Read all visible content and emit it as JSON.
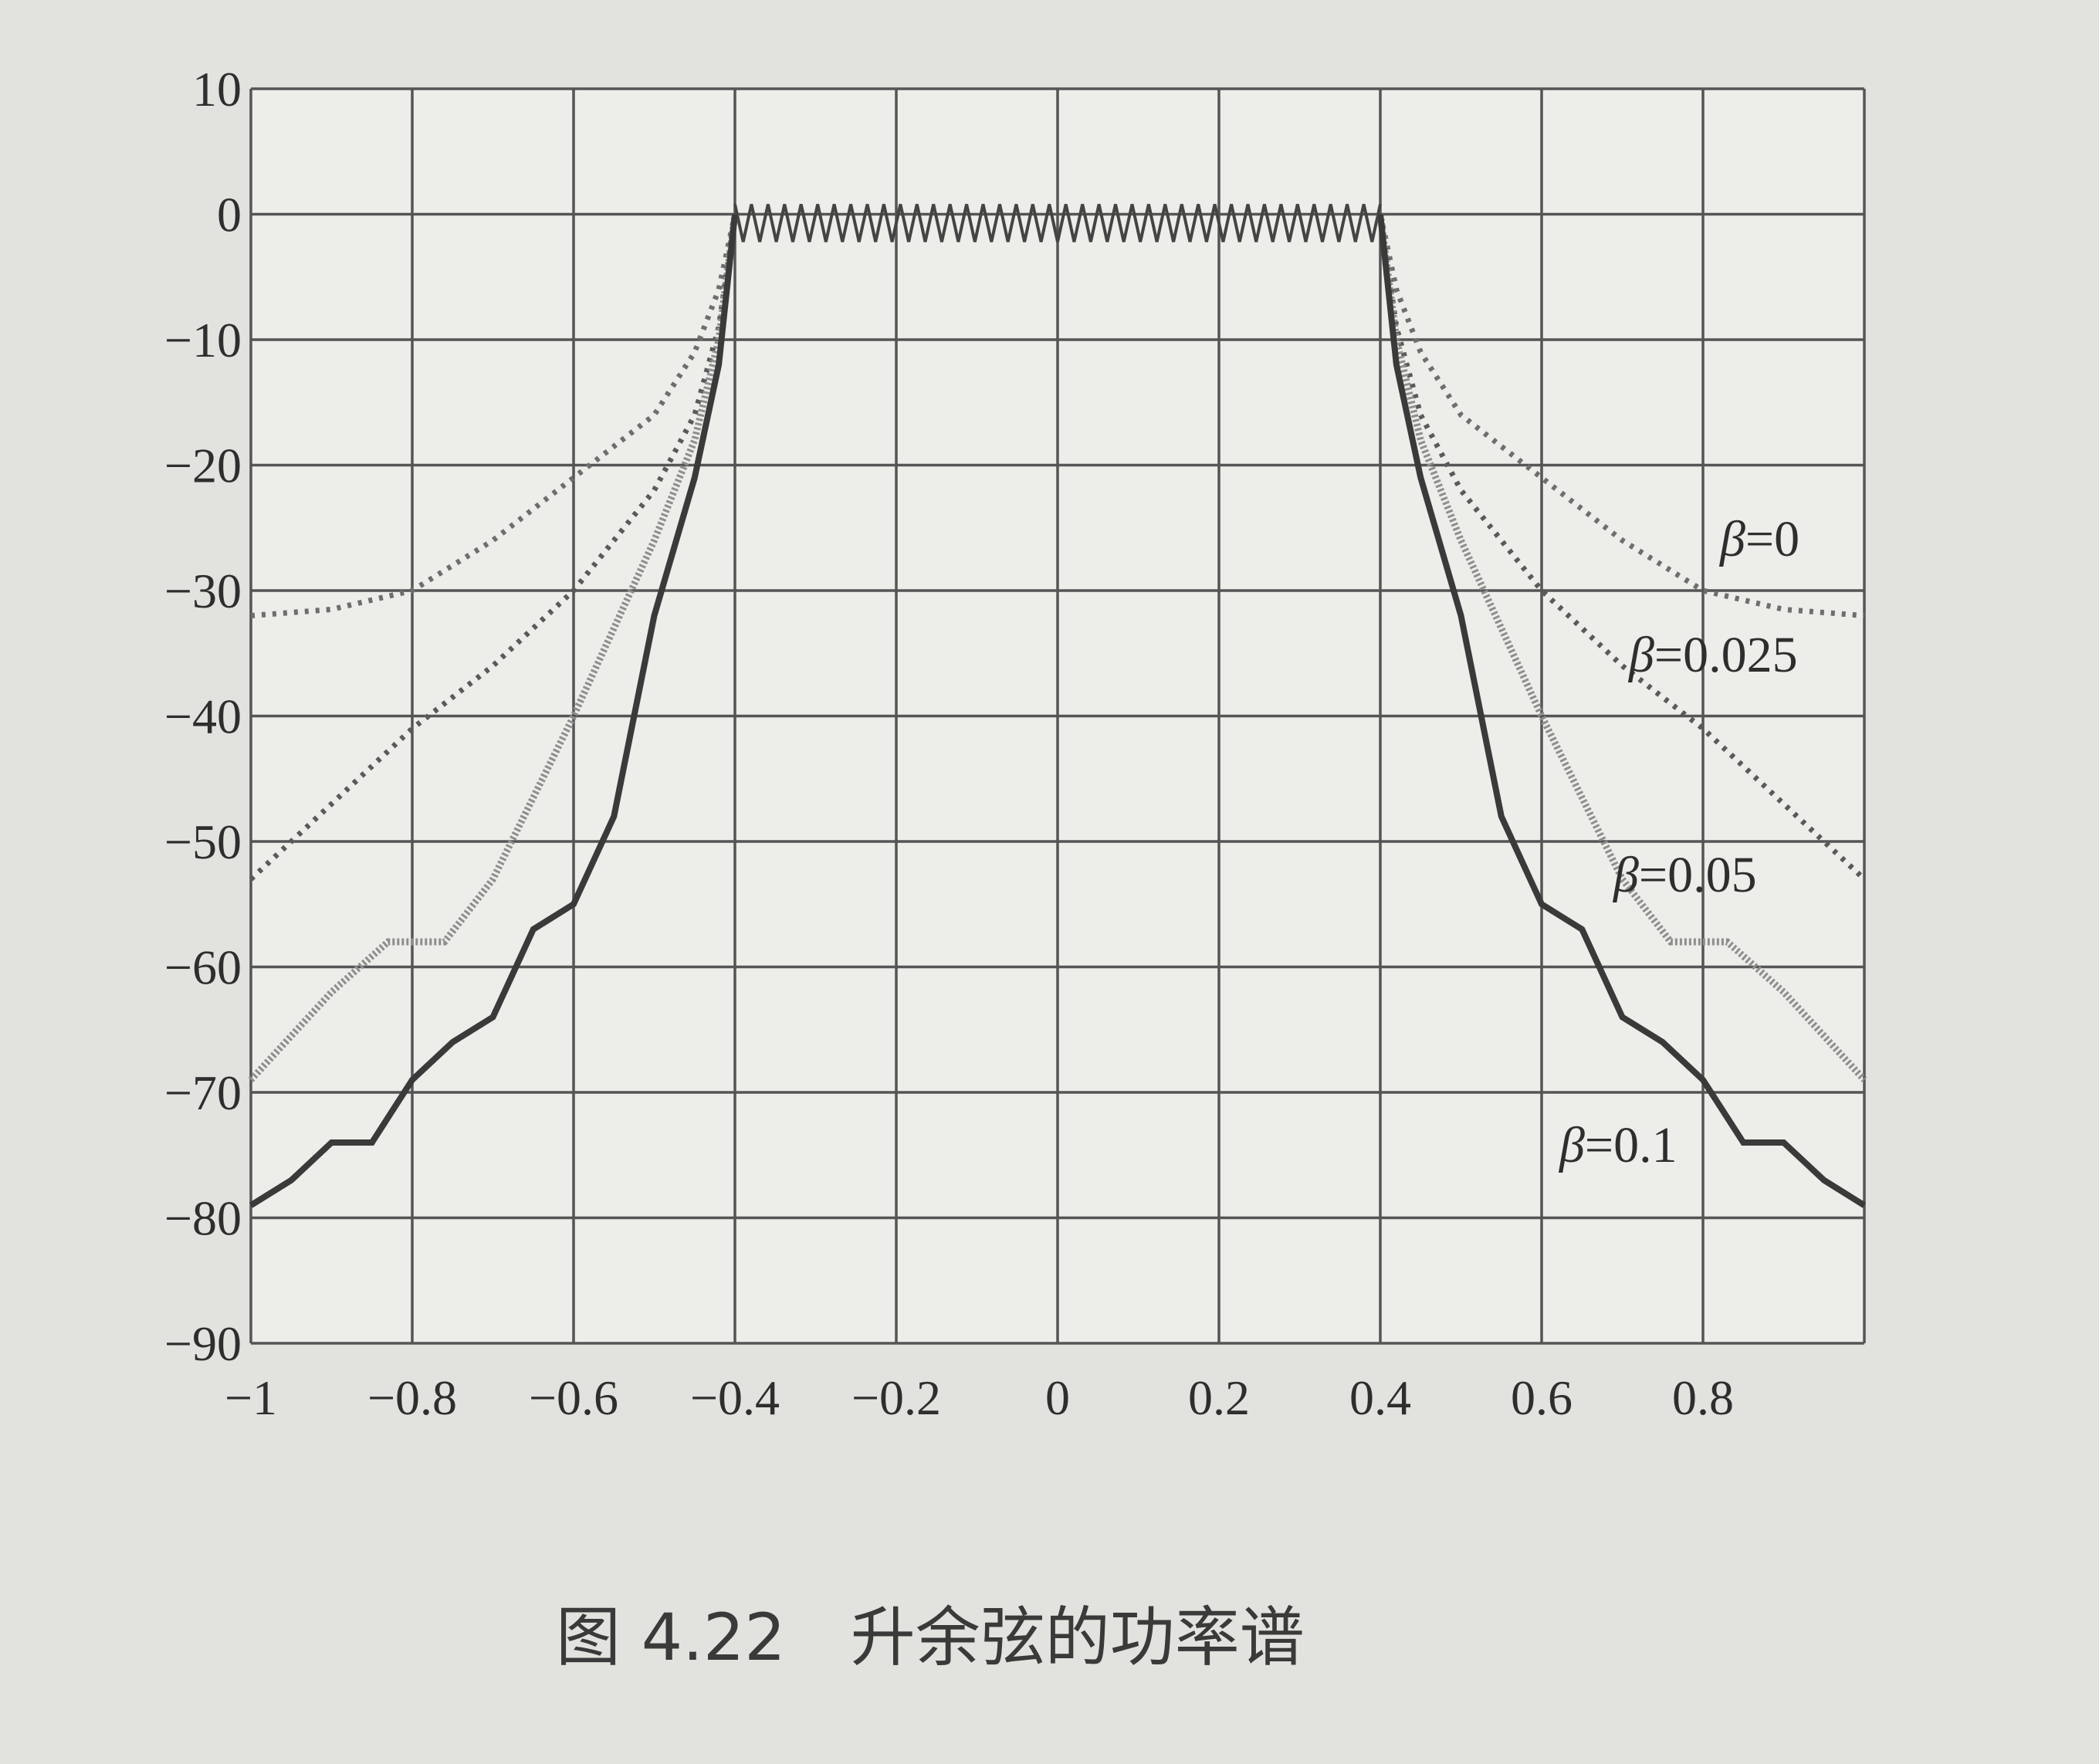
{
  "chart_data": {
    "type": "line",
    "title": "",
    "xlabel": "",
    "ylabel": "",
    "xlim": [
      -1,
      1
    ],
    "ylim": [
      -90,
      10
    ],
    "xticks": [
      -1,
      -0.8,
      -0.6,
      -0.4,
      -0.2,
      0,
      0.2,
      0.4,
      0.6,
      0.8
    ],
    "xtick_labels": [
      "-1",
      "-0.8",
      "-0.6",
      "-0.4",
      "-0.2",
      "0",
      "0.2",
      "0.4",
      "0.6",
      "0.8"
    ],
    "yticks": [
      10,
      0,
      -10,
      -20,
      -30,
      -40,
      -50,
      -60,
      -70,
      -80,
      -90
    ],
    "ytick_labels": [
      "10",
      "0",
      "-10",
      "-20",
      "-30",
      "-40",
      "-50",
      "-60",
      "-70",
      "-80",
      "-90"
    ],
    "grid": true,
    "passband": {
      "x": [
        -0.4,
        0.4
      ],
      "top": 0.8,
      "bottom": -2.2
    },
    "series": [
      {
        "name": "β=0",
        "style": "dotted",
        "color": "#6e6e6e",
        "x": [
          -1.0,
          -0.9,
          -0.8,
          -0.7,
          -0.6,
          -0.5,
          -0.45,
          -0.42,
          -0.4
        ],
        "y": [
          -32,
          -31.5,
          -30,
          -26,
          -21,
          -16,
          -11,
          -6,
          0
        ]
      },
      {
        "name": "β=0.025",
        "style": "dotted",
        "color": "#5a5a5a",
        "x": [
          -1.0,
          -0.9,
          -0.8,
          -0.7,
          -0.6,
          -0.5,
          -0.45,
          -0.42,
          -0.4
        ],
        "y": [
          -53,
          -47,
          -41,
          -36,
          -30,
          -22,
          -16,
          -9,
          0
        ]
      },
      {
        "name": "β=0.05",
        "style": "light",
        "color": "#8e8e8e",
        "x": [
          -1.0,
          -0.9,
          -0.83,
          -0.76,
          -0.7,
          -0.6,
          -0.5,
          -0.45,
          -0.42,
          -0.4
        ],
        "y": [
          -69,
          -62,
          -58,
          -58,
          -53,
          -40,
          -26,
          -18,
          -10,
          0
        ]
      },
      {
        "name": "β=0.1",
        "style": "solid",
        "color": "#3a3a3a",
        "x": [
          -1.0,
          -0.95,
          -0.9,
          -0.85,
          -0.8,
          -0.75,
          -0.7,
          -0.65,
          -0.6,
          -0.55,
          -0.5,
          -0.45,
          -0.42,
          -0.4
        ],
        "y": [
          -79,
          -77,
          -74,
          -74,
          -69,
          -66,
          -64,
          -57,
          -55,
          -48,
          -32,
          -21,
          -12,
          0
        ]
      }
    ],
    "legend": [
      {
        "symbol": "β",
        "value": "=0"
      },
      {
        "symbol": "β",
        "value": "=0.025"
      },
      {
        "symbol": "β",
        "value": "=0.05"
      },
      {
        "symbol": "β",
        "value": "=0.1"
      }
    ],
    "caption": "图 4.22　升余弦的功率谱"
  }
}
